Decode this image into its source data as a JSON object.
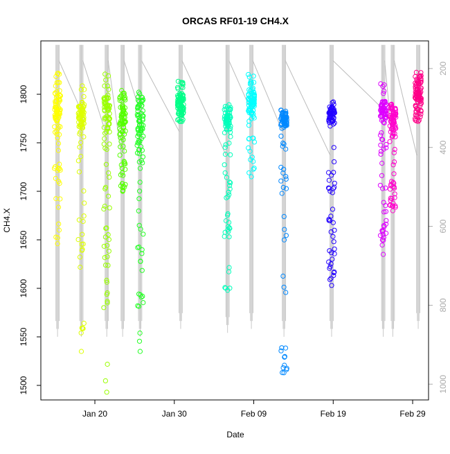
{
  "chart_data": {
    "type": "scatter",
    "title": "ORCAS RF01-19 CH4.X",
    "xlabel": "Date",
    "ylabel": "CH4.X",
    "ylim": [
      1485,
      1855
    ],
    "y_ticks": [
      1500,
      1550,
      1600,
      1650,
      1700,
      1750,
      1800
    ],
    "x_range_days": [
      -6.8,
      42.0
    ],
    "x_ticks": [
      {
        "label": "Jan 20",
        "day": 0
      },
      {
        "label": "Jan 30",
        "day": 10
      },
      {
        "label": "Feb 09",
        "day": 20
      },
      {
        "label": "Feb 19",
        "day": 30
      },
      {
        "label": "Feb 29",
        "day": 40
      }
    ],
    "right_axis": {
      "range": [
        130,
        1040
      ],
      "ticks": [
        200,
        400,
        600,
        800,
        1000
      ],
      "color": "#aaaaaa"
    },
    "grid": false,
    "legend": "none",
    "flights": [
      {
        "day": -4.7,
        "color": "#FFFF00",
        "center": 1785,
        "spread": 18,
        "low": 1680,
        "high": 1822,
        "tail": 1646,
        "pressure_min": 140,
        "pressure_max": 880
      },
      {
        "day": -1.7,
        "color": "#DDFF00",
        "center": 1778,
        "spread": 15,
        "low": 1620,
        "high": 1812,
        "tail": 1535,
        "pressure_min": 140,
        "pressure_max": 880
      },
      {
        "day": 1.5,
        "color": "#99FF00",
        "center": 1785,
        "spread": 20,
        "low": 1580,
        "high": 1835,
        "tail": 1493,
        "pressure_min": 140,
        "pressure_max": 880
      },
      {
        "day": 3.5,
        "color": "#55FF00",
        "center": 1775,
        "spread": 15,
        "low": 1700,
        "high": 1805,
        "tail": 1700,
        "pressure_min": 140,
        "pressure_max": 880
      },
      {
        "day": 5.7,
        "color": "#22FF22",
        "center": 1770,
        "spread": 25,
        "low": 1565,
        "high": 1803,
        "tail": 1535,
        "pressure_min": 140,
        "pressure_max": 880
      },
      {
        "day": 10.8,
        "color": "#00FF88",
        "center": 1790,
        "spread": 12,
        "low": 1772,
        "high": 1815,
        "tail": 1772,
        "pressure_min": 140,
        "pressure_max": 860
      },
      {
        "day": 16.7,
        "color": "#00FFBB",
        "center": 1775,
        "spread": 12,
        "low": 1645,
        "high": 1790,
        "tail": 1598,
        "pressure_min": 140,
        "pressure_max": 870
      },
      {
        "day": 19.7,
        "color": "#00FFFF",
        "center": 1790,
        "spread": 15,
        "low": 1748,
        "high": 1822,
        "tail": 1715,
        "pressure_min": 140,
        "pressure_max": 860
      },
      {
        "day": 23.8,
        "color": "#0088FF",
        "center": 1775,
        "spread": 10,
        "low": 1580,
        "high": 1785,
        "tail": 1513,
        "pressure_min": 140,
        "pressure_max": 880
      },
      {
        "day": 29.8,
        "color": "#2200FF",
        "center": 1778,
        "spread": 10,
        "low": 1605,
        "high": 1797,
        "tail": 1603,
        "pressure_min": 140,
        "pressure_max": 880
      },
      {
        "day": 36.3,
        "color": "#DD00FF",
        "center": 1782,
        "spread": 12,
        "low": 1635,
        "high": 1815,
        "tail": 1635,
        "pressure_min": 140,
        "pressure_max": 880
      },
      {
        "day": 37.5,
        "color": "#FF00CC",
        "center": 1775,
        "spread": 15,
        "low": 1680,
        "high": 1807,
        "tail": 1680,
        "pressure_min": 140,
        "pressure_max": 880
      },
      {
        "day": 40.7,
        "color": "#FF0088",
        "center": 1800,
        "spread": 12,
        "low": 1772,
        "high": 1823,
        "tail": 1772,
        "pressure_min": 140,
        "pressure_max": 860
      }
    ],
    "points_per_flight": 90,
    "pressure_line_color": "#bbbbbb"
  }
}
